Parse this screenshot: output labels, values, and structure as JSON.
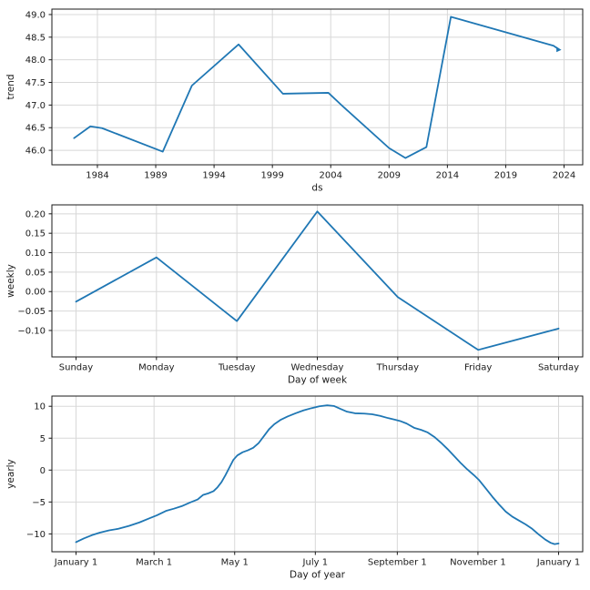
{
  "figure": {
    "background": "#ffffff",
    "line_color": "#1f77b4",
    "grid_color": "#d8d8d8",
    "spine_color": "#1a1a1a",
    "text_color": "#1a1a1a"
  },
  "chart_data": [
    {
      "type": "line",
      "name": "trend",
      "title": "",
      "xlabel": "ds",
      "ylabel": "trend",
      "xlim": [
        1980.1,
        2025.6
      ],
      "ylim": [
        45.68,
        49.12
      ],
      "grid": true,
      "legend": false,
      "end_marker": true,
      "xticks": [
        {
          "v": 1984,
          "label": "1984"
        },
        {
          "v": 1989,
          "label": "1989"
        },
        {
          "v": 1994,
          "label": "1994"
        },
        {
          "v": 1999,
          "label": "1999"
        },
        {
          "v": 2004,
          "label": "2004"
        },
        {
          "v": 2009,
          "label": "2009"
        },
        {
          "v": 2014,
          "label": "2014"
        },
        {
          "v": 2019,
          "label": "2019"
        },
        {
          "v": 2024,
          "label": "2024"
        }
      ],
      "yticks": [
        {
          "v": 46.0,
          "label": "46.0"
        },
        {
          "v": 46.5,
          "label": "46.5"
        },
        {
          "v": 47.0,
          "label": "47.0"
        },
        {
          "v": 47.5,
          "label": "47.5"
        },
        {
          "v": 48.0,
          "label": "48.0"
        },
        {
          "v": 48.5,
          "label": "48.5"
        },
        {
          "v": 49.0,
          "label": "49.0"
        }
      ],
      "points": [
        [
          1982.0,
          46.27
        ],
        [
          1983.4,
          46.53
        ],
        [
          1984.4,
          46.49
        ],
        [
          1989.6,
          45.97
        ],
        [
          1992.1,
          47.43
        ],
        [
          1996.1,
          48.34
        ],
        [
          1999.9,
          47.25
        ],
        [
          2003.8,
          47.27
        ],
        [
          2005.0,
          46.98
        ],
        [
          2009.0,
          46.05
        ],
        [
          2010.4,
          45.83
        ],
        [
          2012.2,
          46.07
        ],
        [
          2014.3,
          48.95
        ],
        [
          2023.1,
          48.31
        ],
        [
          2023.5,
          48.24
        ]
      ]
    },
    {
      "type": "line",
      "name": "weekly",
      "title": "",
      "xlabel": "Day of week",
      "ylabel": "weekly",
      "xlim": [
        -0.3,
        6.3
      ],
      "ylim": [
        -0.168,
        0.223
      ],
      "grid": true,
      "legend": false,
      "end_marker": false,
      "xticks": [
        {
          "v": 0,
          "label": "Sunday"
        },
        {
          "v": 1,
          "label": "Monday"
        },
        {
          "v": 2,
          "label": "Tuesday"
        },
        {
          "v": 3,
          "label": "Wednesday"
        },
        {
          "v": 4,
          "label": "Thursday"
        },
        {
          "v": 5,
          "label": "Friday"
        },
        {
          "v": 6,
          "label": "Saturday"
        }
      ],
      "yticks": [
        {
          "v": -0.1,
          "label": "−0.10"
        },
        {
          "v": -0.05,
          "label": "−0.05"
        },
        {
          "v": 0.0,
          "label": "0.00"
        },
        {
          "v": 0.05,
          "label": "0.05"
        },
        {
          "v": 0.1,
          "label": "0.10"
        },
        {
          "v": 0.15,
          "label": "0.15"
        },
        {
          "v": 0.2,
          "label": "0.20"
        }
      ],
      "points": [
        [
          0,
          -0.026
        ],
        [
          1,
          0.088
        ],
        [
          2,
          -0.076
        ],
        [
          3,
          0.206
        ],
        [
          4,
          -0.014
        ],
        [
          5,
          -0.15
        ],
        [
          6,
          -0.095
        ]
      ]
    },
    {
      "type": "line",
      "name": "yearly",
      "title": "",
      "xlabel": "Day of year",
      "ylabel": "yearly",
      "xlim": [
        -18.25,
        383.25
      ],
      "ylim": [
        -12.8,
        11.6
      ],
      "grid": true,
      "legend": false,
      "end_marker": false,
      "xticks": [
        {
          "v": 0,
          "label": "January 1"
        },
        {
          "v": 59,
          "label": "March 1"
        },
        {
          "v": 120,
          "label": "May 1"
        },
        {
          "v": 181,
          "label": "July 1"
        },
        {
          "v": 243,
          "label": "September 1"
        },
        {
          "v": 304,
          "label": "November 1"
        },
        {
          "v": 365,
          "label": "January 1"
        }
      ],
      "yticks": [
        {
          "v": -10,
          "label": "−10"
        },
        {
          "v": -5,
          "label": "−5"
        },
        {
          "v": 0,
          "label": "0"
        },
        {
          "v": 5,
          "label": "5"
        },
        {
          "v": 10,
          "label": "10"
        }
      ],
      "points": [
        [
          0,
          -11.3
        ],
        [
          6,
          -10.7
        ],
        [
          12,
          -10.2
        ],
        [
          18,
          -9.8
        ],
        [
          25,
          -9.45
        ],
        [
          32,
          -9.2
        ],
        [
          40,
          -8.75
        ],
        [
          48,
          -8.2
        ],
        [
          55,
          -7.6
        ],
        [
          61,
          -7.1
        ],
        [
          68,
          -6.4
        ],
        [
          74,
          -6.05
        ],
        [
          80,
          -5.65
        ],
        [
          86,
          -5.1
        ],
        [
          92,
          -4.6
        ],
        [
          96,
          -3.9
        ],
        [
          100,
          -3.65
        ],
        [
          104,
          -3.3
        ],
        [
          107,
          -2.7
        ],
        [
          110,
          -1.9
        ],
        [
          113,
          -0.8
        ],
        [
          116,
          0.4
        ],
        [
          119,
          1.6
        ],
        [
          122,
          2.3
        ],
        [
          126,
          2.8
        ],
        [
          130,
          3.1
        ],
        [
          134,
          3.5
        ],
        [
          138,
          4.2
        ],
        [
          142,
          5.3
        ],
        [
          146,
          6.4
        ],
        [
          150,
          7.2
        ],
        [
          155,
          7.9
        ],
        [
          160,
          8.4
        ],
        [
          166,
          8.9
        ],
        [
          172,
          9.35
        ],
        [
          178,
          9.7
        ],
        [
          184,
          10.0
        ],
        [
          190,
          10.15
        ],
        [
          195,
          10.05
        ],
        [
          200,
          9.6
        ],
        [
          205,
          9.15
        ],
        [
          211,
          8.9
        ],
        [
          218,
          8.85
        ],
        [
          224,
          8.75
        ],
        [
          230,
          8.5
        ],
        [
          236,
          8.15
        ],
        [
          241,
          7.9
        ],
        [
          245,
          7.7
        ],
        [
          250,
          7.3
        ],
        [
          256,
          6.6
        ],
        [
          261,
          6.3
        ],
        [
          266,
          5.9
        ],
        [
          271,
          5.2
        ],
        [
          276,
          4.3
        ],
        [
          281,
          3.3
        ],
        [
          286,
          2.2
        ],
        [
          291,
          1.1
        ],
        [
          296,
          0.1
        ],
        [
          301,
          -0.8
        ],
        [
          305,
          -1.6
        ],
        [
          310,
          -2.9
        ],
        [
          315,
          -4.2
        ],
        [
          320,
          -5.4
        ],
        [
          325,
          -6.5
        ],
        [
          330,
          -7.3
        ],
        [
          335,
          -7.9
        ],
        [
          340,
          -8.5
        ],
        [
          345,
          -9.2
        ],
        [
          350,
          -10.1
        ],
        [
          355,
          -10.9
        ],
        [
          359,
          -11.4
        ],
        [
          362,
          -11.6
        ],
        [
          365,
          -11.5
        ]
      ]
    }
  ]
}
